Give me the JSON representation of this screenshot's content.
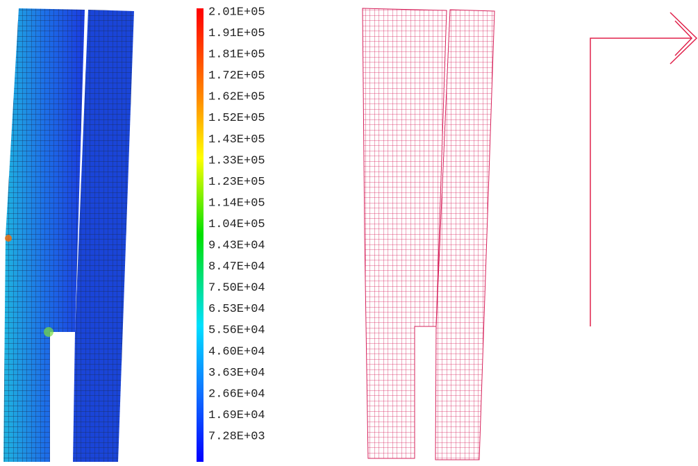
{
  "legend": {
    "labels": [
      "2.01E+05",
      "1.91E+05",
      "1.81E+05",
      "1.72E+05",
      "1.62E+05",
      "1.52E+05",
      "1.43E+05",
      "1.33E+05",
      "1.23E+05",
      "1.14E+05",
      "1.04E+05",
      "9.43E+04",
      "8.47E+04",
      "7.50E+04",
      "6.53E+04",
      "5.56E+04",
      "4.60E+04",
      "3.63E+04",
      "2.66E+04",
      "1.69E+04",
      "7.28E+03"
    ]
  }
}
